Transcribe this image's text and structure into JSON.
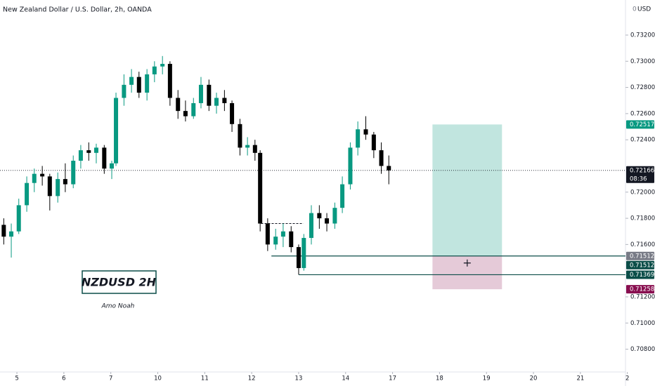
{
  "chart_data": {
    "type": "candlestick",
    "title": "New Zealand Dollar / U.S. Dollar, 2h, OANDA",
    "currency": "USD",
    "currency_prefix": "0",
    "up_color": "#089981",
    "down_color": "#000000",
    "grid": false,
    "ylim": [
      0.70626,
      0.73468
    ],
    "yticks": [
      {
        "value": 0.708,
        "label": "0.70800"
      },
      {
        "value": 0.71,
        "label": "0.71000"
      },
      {
        "value": 0.712,
        "label": "0.71200"
      },
      {
        "value": 0.716,
        "label": "0.71600"
      },
      {
        "value": 0.718,
        "label": "0.71800"
      },
      {
        "value": 0.72,
        "label": "0.72000"
      },
      {
        "value": 0.724,
        "label": "0.72400"
      },
      {
        "value": 0.726,
        "label": "0.72600"
      },
      {
        "value": 0.728,
        "label": "0.72800"
      },
      {
        "value": 0.73,
        "label": "0.73000"
      },
      {
        "value": 0.732,
        "label": "0.73200"
      }
    ],
    "xlim": [
      -0.36,
      12.96
    ],
    "xticks": [
      {
        "value": 0,
        "label": "5"
      },
      {
        "value": 1,
        "label": "6"
      },
      {
        "value": 2,
        "label": "7"
      },
      {
        "value": 3,
        "label": "10"
      },
      {
        "value": 4,
        "label": "11"
      },
      {
        "value": 5,
        "label": "12"
      },
      {
        "value": 6,
        "label": "13"
      },
      {
        "value": 7,
        "label": "14"
      },
      {
        "value": 8,
        "label": "17"
      },
      {
        "value": 9,
        "label": "18"
      },
      {
        "value": 10,
        "label": "19"
      },
      {
        "value": 11,
        "label": "20"
      },
      {
        "value": 12,
        "label": "21"
      },
      {
        "value": 13,
        "label": "2"
      }
    ],
    "x": [
      -0.28,
      -0.12,
      0.04,
      0.21,
      0.37,
      0.54,
      0.7,
      0.87,
      1.03,
      1.2,
      1.36,
      1.53,
      1.69,
      1.86,
      2.02,
      2.11,
      2.28,
      2.44,
      2.6,
      2.77,
      2.93,
      3.1,
      3.26,
      3.43,
      3.59,
      3.76,
      3.92,
      4.09,
      4.25,
      4.42,
      4.58,
      4.75,
      4.91,
      5.07,
      5.18,
      5.34,
      5.51,
      5.67,
      5.84,
      6.0,
      6.11,
      6.27,
      6.44,
      6.6,
      6.77,
      6.93,
      7.1,
      7.26,
      7.43,
      7.6,
      7.76,
      7.92
    ],
    "open": [
      0.7175,
      0.7166,
      0.717,
      0.719,
      0.7207,
      0.7214,
      0.7212,
      0.7197,
      0.721,
      0.7206,
      0.7224,
      0.7232,
      0.723,
      0.7234,
      0.7218,
      0.7222,
      0.7272,
      0.7282,
      0.7288,
      0.7276,
      0.729,
      0.7296,
      0.7298,
      0.7272,
      0.7262,
      0.7258,
      0.7268,
      0.7282,
      0.7266,
      0.7272,
      0.7268,
      0.7252,
      0.7234,
      0.7236,
      0.723,
      0.7176,
      0.716,
      0.7166,
      0.717,
      0.7158,
      0.7142,
      0.7165,
      0.7184,
      0.718,
      0.7176,
      0.7188,
      0.7206,
      0.7234,
      0.7248,
      0.7244,
      0.7232,
      0.722
    ],
    "high": [
      0.718,
      0.7176,
      0.7195,
      0.7212,
      0.7218,
      0.722,
      0.7214,
      0.7215,
      0.7222,
      0.7228,
      0.7236,
      0.7238,
      0.7237,
      0.7236,
      0.7224,
      0.7276,
      0.729,
      0.7294,
      0.7292,
      0.7294,
      0.73,
      0.7304,
      0.73,
      0.7278,
      0.727,
      0.7272,
      0.7288,
      0.7286,
      0.7276,
      0.7278,
      0.727,
      0.7256,
      0.7242,
      0.724,
      0.7232,
      0.718,
      0.7172,
      0.7176,
      0.7174,
      0.716,
      0.7168,
      0.719,
      0.719,
      0.7184,
      0.7192,
      0.7212,
      0.7238,
      0.7254,
      0.7258,
      0.7246,
      0.7238,
      0.7228
    ],
    "low": [
      0.716,
      0.715,
      0.7168,
      0.7185,
      0.72,
      0.7205,
      0.7186,
      0.7192,
      0.72,
      0.7203,
      0.7218,
      0.7224,
      0.7222,
      0.7214,
      0.721,
      0.722,
      0.7266,
      0.7276,
      0.7272,
      0.727,
      0.7284,
      0.729,
      0.7266,
      0.7256,
      0.7254,
      0.7256,
      0.7264,
      0.7262,
      0.726,
      0.7262,
      0.7246,
      0.7228,
      0.7228,
      0.7224,
      0.717,
      0.7155,
      0.7156,
      0.7158,
      0.7154,
      0.7137,
      0.714,
      0.716,
      0.7172,
      0.717,
      0.7172,
      0.7184,
      0.7202,
      0.7228,
      0.724,
      0.7226,
      0.7214,
      0.7206
    ],
    "close": [
      0.7166,
      0.717,
      0.719,
      0.7207,
      0.7214,
      0.7212,
      0.7197,
      0.721,
      0.7206,
      0.7224,
      0.7232,
      0.723,
      0.7234,
      0.7218,
      0.7222,
      0.7272,
      0.7282,
      0.7288,
      0.7276,
      0.729,
      0.7296,
      0.7298,
      0.7272,
      0.7262,
      0.7258,
      0.7268,
      0.7282,
      0.7266,
      0.7272,
      0.7268,
      0.7252,
      0.7234,
      0.7236,
      0.723,
      0.7176,
      0.716,
      0.7166,
      0.717,
      0.7158,
      0.7142,
      0.7165,
      0.7184,
      0.718,
      0.7176,
      0.7188,
      0.7206,
      0.7234,
      0.7248,
      0.7244,
      0.7232,
      0.722,
      0.72166
    ],
    "last_price": 0.72166,
    "countdown": "08:36",
    "position": {
      "target": 0.72517,
      "entry": 0.71512,
      "stop": 0.71258,
      "x_start": 8.85,
      "x_end": 10.33,
      "target_color": "#089981",
      "entry_color": "#787b86",
      "stop_color": "#880e4f"
    },
    "levels": [
      {
        "value": 0.71512,
        "x_start": 5.42
      },
      {
        "value": 0.71369,
        "x_start": 6.0
      }
    ],
    "level_color": "#0b4d48",
    "dashed_level": {
      "value": 0.7176,
      "x_start": 5.2,
      "x_end": 6.1
    },
    "annotations": {
      "symbol_box": "NZDUSD 2H",
      "author": "Amo Noah"
    }
  }
}
